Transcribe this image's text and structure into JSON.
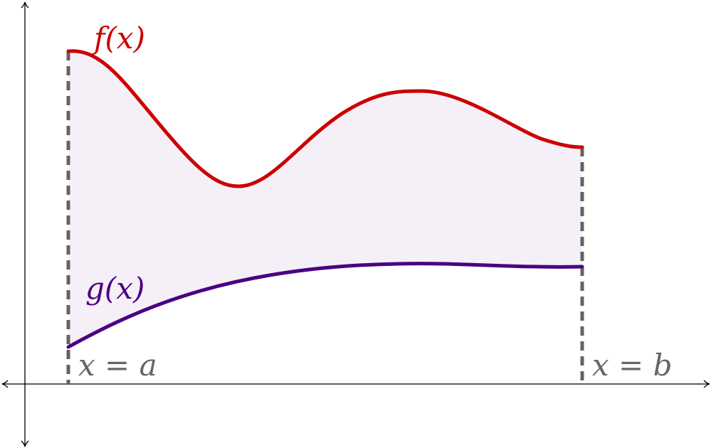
{
  "labels": {
    "f": "f(x)",
    "g": "g(x)",
    "a": "x = a",
    "b": "x = b"
  },
  "colors": {
    "f_curve": "#cc0000",
    "g_curve": "#4b0082",
    "region_fill": "#f5f0f7",
    "boundary_lines": "#636363",
    "axes": "#000000",
    "boundary_labels": "#666666"
  }
}
